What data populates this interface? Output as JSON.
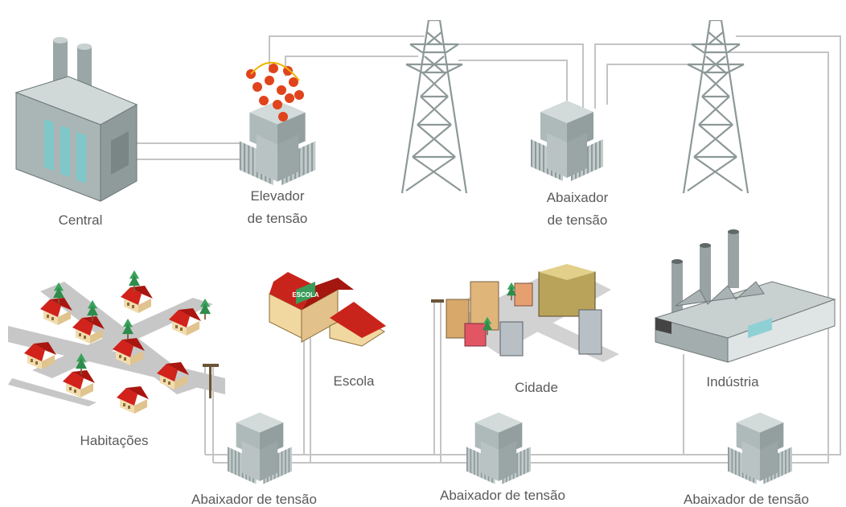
{
  "nodes": [
    {
      "label": "Central"
    },
    {
      "lines": [
        "Elevador",
        "de tensão"
      ]
    },
    {
      "lines": [
        "Abaixador",
        "de tensão"
      ]
    },
    {
      "label": "Habitações"
    },
    {
      "label": "Escola",
      "sign": "ESCOLA"
    },
    {
      "label": "Cidade"
    },
    {
      "label": "Indústria"
    },
    {
      "label": "Abaixador de tensão"
    },
    {
      "label": "Abaixador de tensão"
    },
    {
      "label": "Abaixador de tensão"
    }
  ]
}
